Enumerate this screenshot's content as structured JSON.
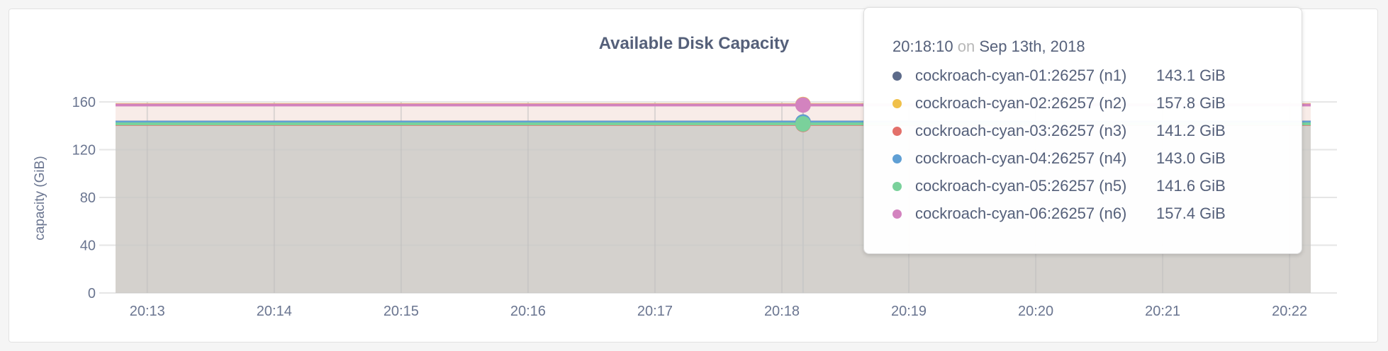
{
  "chart_data": {
    "type": "area",
    "title": "Available Disk Capacity",
    "ylabel": "capacity (GiB)",
    "xlabel": "",
    "ylim": [
      0,
      160
    ],
    "yticks": [
      "0",
      "40",
      "80",
      "120",
      "160"
    ],
    "xticks": [
      "20:13",
      "20:14",
      "20:15",
      "20:16",
      "20:17",
      "20:18",
      "20:19",
      "20:20",
      "20:21",
      "20:22"
    ],
    "xrange": [
      "20:12:45",
      "20:22:10"
    ],
    "grid": true,
    "series": [
      {
        "name": "cockroach-cyan-01:26257 (n1)",
        "color": "#5d6b8a",
        "value": 143.1,
        "value_label": "143.1 GiB"
      },
      {
        "name": "cockroach-cyan-02:26257 (n2)",
        "color": "#f0c04a",
        "value": 157.8,
        "value_label": "157.8 GiB"
      },
      {
        "name": "cockroach-cyan-03:26257 (n3)",
        "color": "#e3706a",
        "value": 141.2,
        "value_label": "141.2 GiB"
      },
      {
        "name": "cockroach-cyan-04:26257 (n4)",
        "color": "#5f9fd4",
        "value": 143.0,
        "value_label": "143.0 GiB"
      },
      {
        "name": "cockroach-cyan-05:26257 (n5)",
        "color": "#7ad19b",
        "value": 141.6,
        "value_label": "141.6 GiB"
      },
      {
        "name": "cockroach-cyan-06:26257 (n6)",
        "color": "#d383bf",
        "value": 157.4,
        "value_label": "157.4 GiB"
      }
    ],
    "hover": {
      "time": "20:18:10",
      "on": "on",
      "date": "Sep 13th, 2018"
    }
  }
}
